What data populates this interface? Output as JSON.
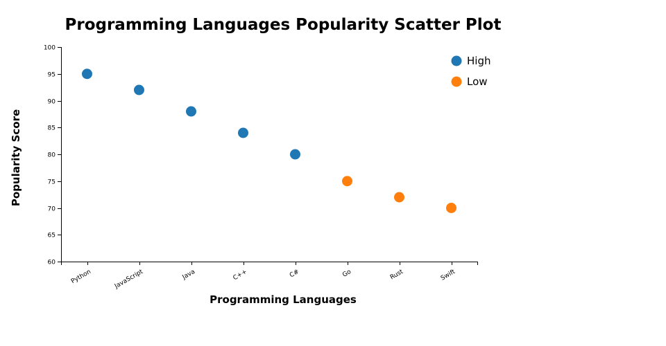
{
  "chart_data": {
    "type": "scatter",
    "title": "Programming Languages Popularity Scatter Plot",
    "xlabel": "Programming Languages",
    "ylabel": "Popularity Score",
    "categories": [
      "Python",
      "JavaScript",
      "Java",
      "C++",
      "C#",
      "Go",
      "Rust",
      "Swift"
    ],
    "values": [
      95,
      92,
      88,
      84,
      80,
      75,
      72,
      70
    ],
    "groups": [
      "High",
      "High",
      "High",
      "High",
      "High",
      "Low",
      "Low",
      "Low"
    ],
    "ylim": [
      60,
      100
    ],
    "yticks": [
      60,
      65,
      70,
      75,
      80,
      85,
      90,
      95,
      100
    ],
    "grid": false,
    "legend": {
      "placement": "top-right",
      "entries": [
        {
          "label": "High",
          "color": "#1f77b4"
        },
        {
          "label": "Low",
          "color": "#ff7f0e"
        }
      ]
    }
  }
}
